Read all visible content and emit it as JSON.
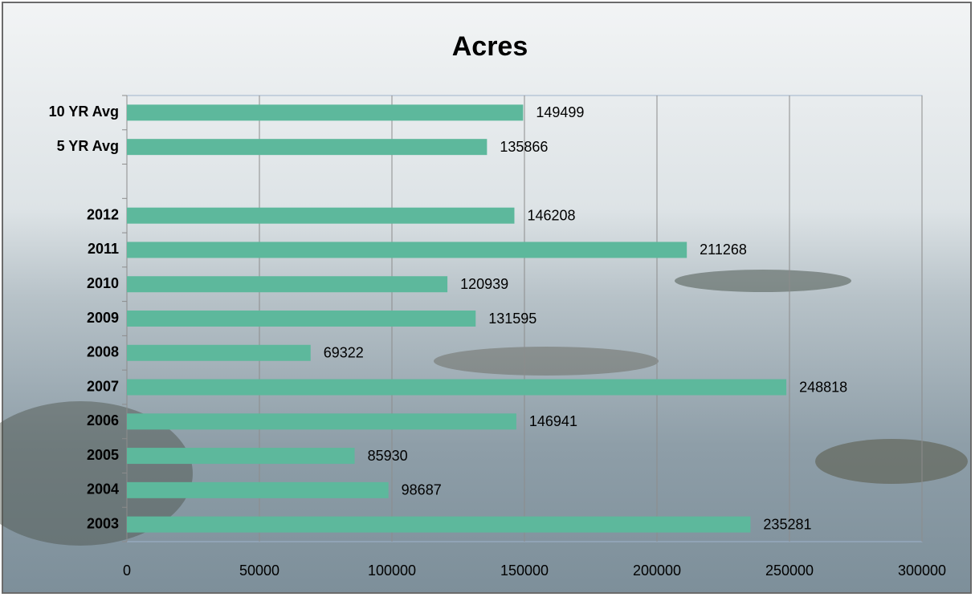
{
  "chart_data": {
    "type": "bar",
    "orientation": "horizontal",
    "title": "Acres",
    "categories": [
      "10 YR Avg",
      "5 YR Avg",
      null,
      "2012",
      "2011",
      "2010",
      "2009",
      "2008",
      "2007",
      "2006",
      "2005",
      "2004",
      "2003"
    ],
    "values": [
      149499,
      135866,
      null,
      146208,
      211268,
      120939,
      131595,
      69322,
      248818,
      146941,
      85930,
      98687,
      235281
    ],
    "color": "#5db89c",
    "xlim": [
      0,
      300000
    ],
    "xticks": [
      0,
      50000,
      100000,
      150000,
      200000,
      250000,
      300000
    ],
    "grid": true
  }
}
